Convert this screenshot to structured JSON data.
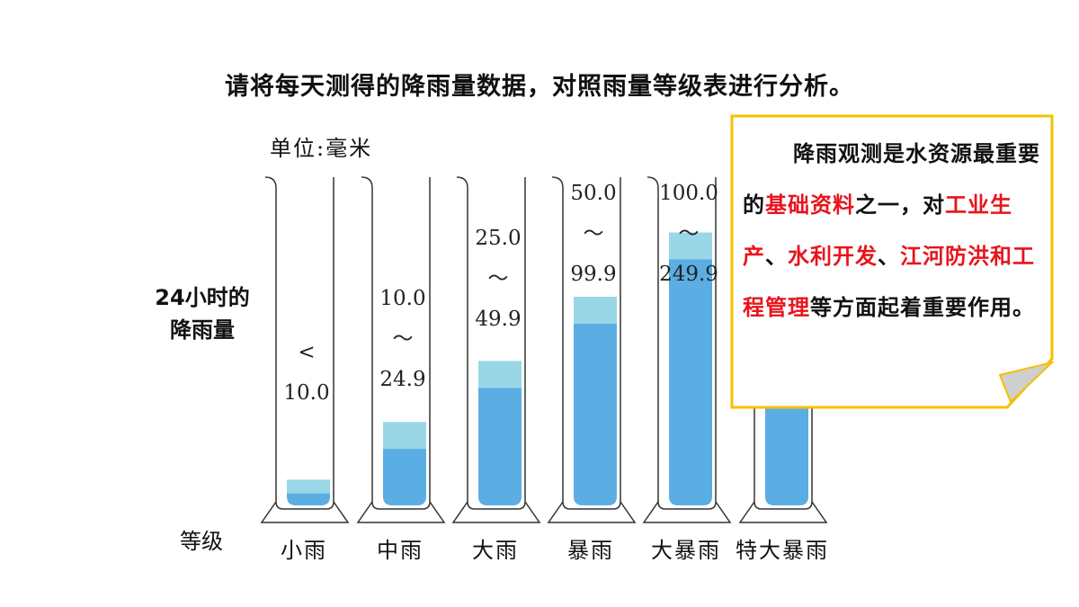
{
  "title": "请将每天测得的降雨量数据，对照雨量等级表进行分析。",
  "unit_label": "单位:毫米",
  "row_label_line1": "24小时的",
  "row_label_line2": "降雨量",
  "level_label": "等级",
  "cylinders": [
    {
      "grade": "小雨",
      "range_lines": [
        "<",
        "10.0"
      ],
      "fill_level": 0.08
    },
    {
      "grade": "中雨",
      "range_lines": [
        "10.0",
        "～",
        "24.9"
      ],
      "fill_level": 0.26
    },
    {
      "grade": "大雨",
      "range_lines": [
        "25.0",
        "～",
        "49.9"
      ],
      "fill_level": 0.45
    },
    {
      "grade": "暴雨",
      "range_lines": [
        "50.0",
        "～",
        "99.9"
      ],
      "fill_level": 0.65
    },
    {
      "grade": "大暴雨",
      "range_lines": [
        "100.0",
        "～",
        "249.9"
      ],
      "fill_level": 0.85
    },
    {
      "grade": "特大暴雨",
      "range_lines": [],
      "fill_level": 0.9
    }
  ],
  "note": {
    "part1": "降雨观测是水资源最重要的",
    "hl1": "基础资料",
    "part2": "之一，对",
    "hl2": "工业生产",
    "sep1": "、",
    "hl3": "水利开发",
    "sep2": "、",
    "hl4": "江河防洪和工程管理",
    "part3": "等方面起着重要作用。"
  },
  "colors": {
    "water_dark": "#5aaee3",
    "water_light": "#9ad7e6",
    "note_border": "#f5c000",
    "highlight": "#e8141c"
  }
}
